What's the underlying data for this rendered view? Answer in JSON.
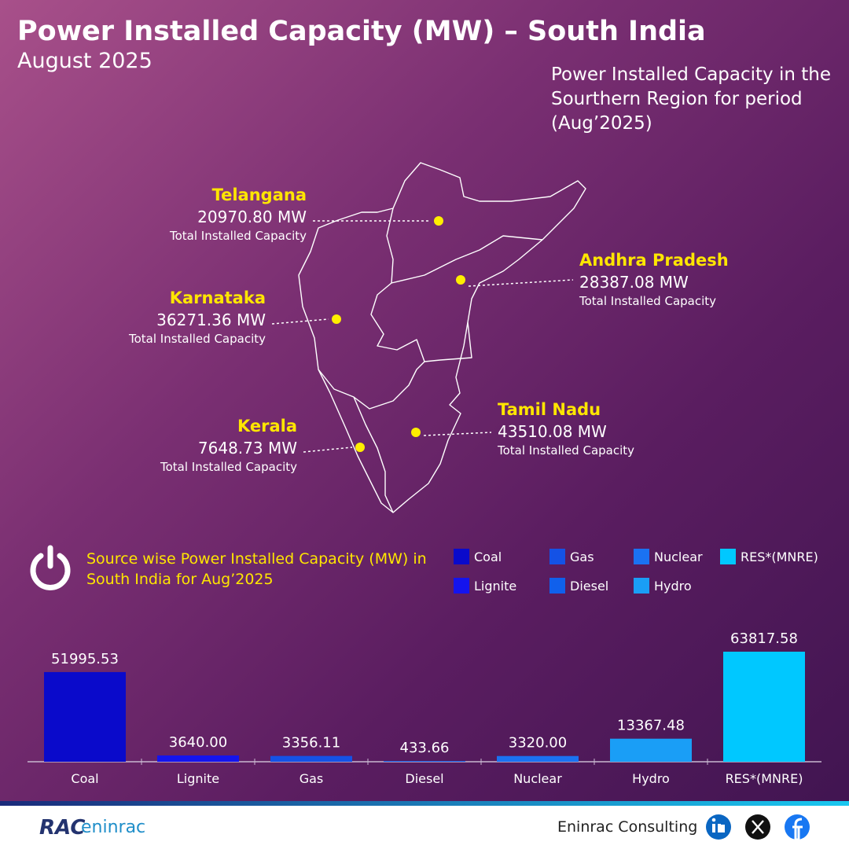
{
  "header": {
    "title": "Power Installed Capacity (MW) – South India",
    "subtitle": "August 2025",
    "note": "Power Installed Capacity in the Sourthern Region for period (Aug’2025)"
  },
  "states": [
    {
      "name": "Telangana",
      "capacity": "20970.80 MW",
      "label": "Total Installed Capacity"
    },
    {
      "name": "Andhra Pradesh",
      "capacity": "28387.08 MW",
      "label": "Total Installed Capacity"
    },
    {
      "name": "Karnataka",
      "capacity": "36271.36 MW",
      "label": "Total Installed Capacity"
    },
    {
      "name": "Kerala",
      "capacity": "7648.73 MW",
      "label": "Total Installed Capacity"
    },
    {
      "name": "Tamil Nadu",
      "capacity": "43510.08 MW",
      "label": "Total Installed Capacity"
    }
  ],
  "chart_data": {
    "type": "bar",
    "title": "Source wise Power Installed Capacity (MW) in South India for Aug’2025",
    "categories": [
      "Coal",
      "Lignite",
      "Gas",
      "Diesel",
      "Nuclear",
      "Hydro",
      "RES*(MNRE)"
    ],
    "values": [
      51995.53,
      3640,
      3356.11,
      433.66,
      3320,
      13367.48,
      63817.58
    ],
    "value_labels": [
      "51995.53",
      "3640.00",
      "3356.11",
      "433.66",
      "3320.00",
      "13367.48",
      "63817.58"
    ],
    "colors": [
      "#0a0acb",
      "#1414ee",
      "#1452e6",
      "#1060ec",
      "#1a72f2",
      "#1a9ef6",
      "#00c8ff"
    ],
    "legend": true
  },
  "footer": {
    "logo_mark": "RAC",
    "logo_name": "eninrac",
    "company": "Eninrac Consulting"
  }
}
